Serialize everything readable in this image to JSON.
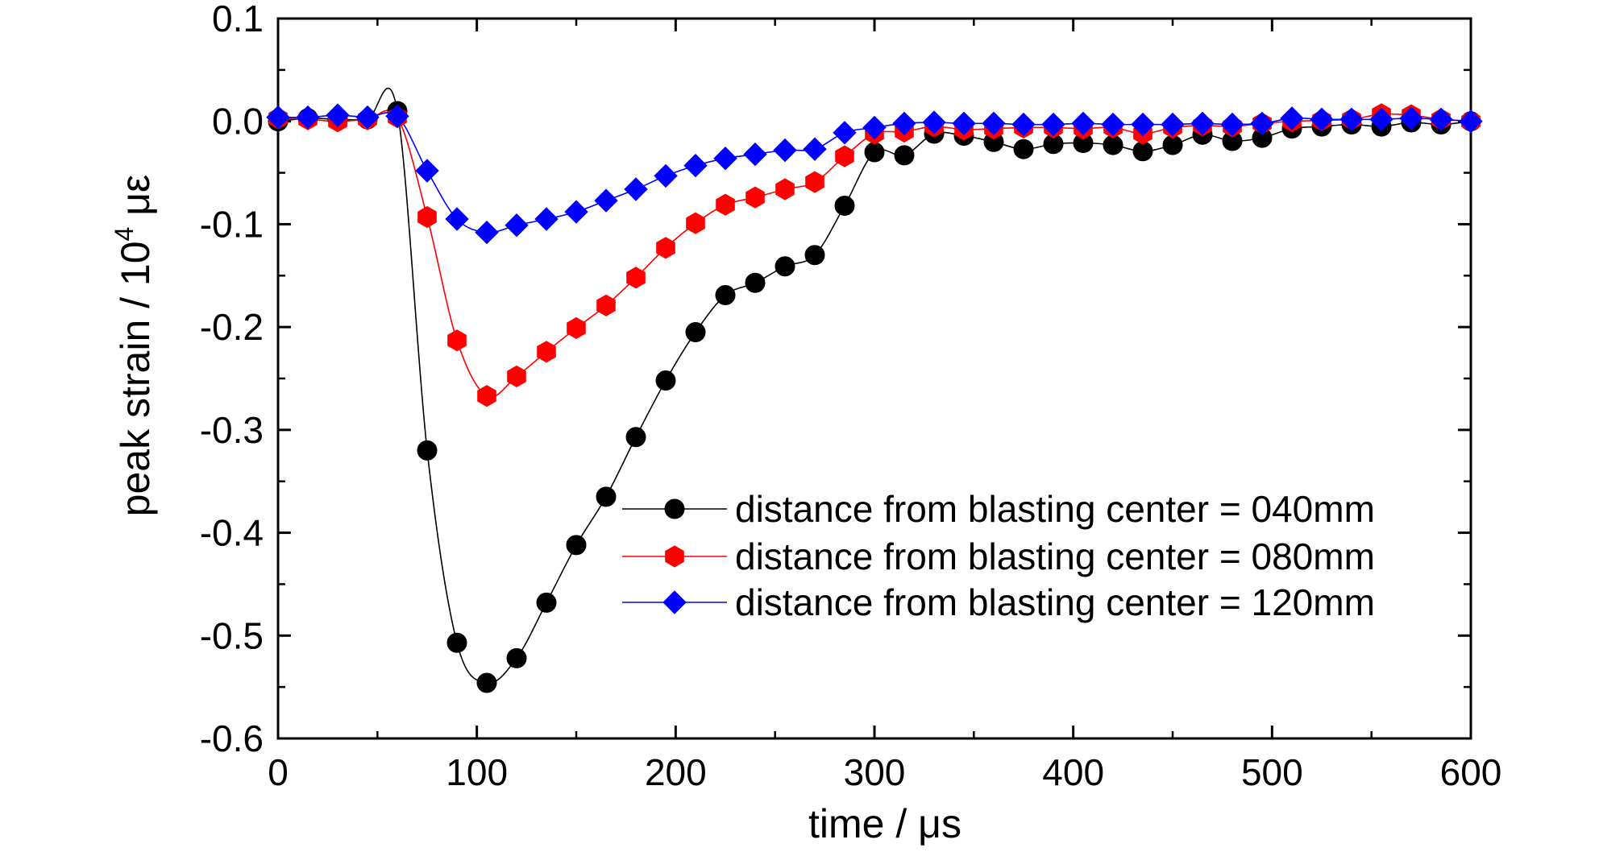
{
  "chart_data": {
    "type": "line",
    "xlabel": "time / μs",
    "ylabel_main": "peak strain / 10",
    "ylabel_sup": "4",
    "ylabel_unit": " με",
    "xlim": [
      0,
      600
    ],
    "ylim": [
      -0.6,
      0.1
    ],
    "xticks": [
      0,
      100,
      200,
      300,
      400,
      500,
      600
    ],
    "xtick_labels": [
      "0",
      "100",
      "200",
      "300",
      "400",
      "500",
      "600"
    ],
    "yticks": [
      0.1,
      0.0,
      -0.1,
      -0.2,
      -0.3,
      -0.4,
      -0.5,
      -0.6
    ],
    "ytick_labels": [
      "0.1",
      "0.0",
      "-0.1",
      "-0.2",
      "-0.3",
      "-0.4",
      "-0.5",
      "-0.6"
    ],
    "grid": false,
    "legend_position": "lower-right",
    "x": [
      0,
      15,
      30,
      45,
      60,
      75,
      90,
      105,
      120,
      135,
      150,
      165,
      180,
      195,
      210,
      225,
      240,
      255,
      270,
      285,
      300,
      315,
      330,
      345,
      360,
      375,
      390,
      405,
      420,
      435,
      450,
      465,
      480,
      495,
      510,
      525,
      540,
      555,
      570,
      585,
      600
    ],
    "series": [
      {
        "name": "distance from blasting center = 040mm",
        "color": "#000000",
        "marker": "circle",
        "values": [
          0.0,
          0.003,
          0.002,
          0.002,
          0.01,
          -0.32,
          -0.507,
          -0.546,
          -0.522,
          -0.468,
          -0.412,
          -0.365,
          -0.307,
          -0.252,
          -0.205,
          -0.169,
          -0.157,
          -0.141,
          -0.13,
          -0.082,
          -0.03,
          -0.033,
          -0.012,
          -0.014,
          -0.02,
          -0.027,
          -0.022,
          -0.021,
          -0.023,
          -0.029,
          -0.023,
          -0.013,
          -0.019,
          -0.016,
          -0.007,
          -0.005,
          -0.003,
          -0.005,
          -0.001,
          -0.003,
          0.0
        ]
      },
      {
        "name": "distance from blasting center = 080mm",
        "color": "#ff0000",
        "marker": "hexagon",
        "values": [
          0.003,
          0.002,
          0.0,
          0.002,
          0.004,
          -0.093,
          -0.213,
          -0.267,
          -0.248,
          -0.224,
          -0.201,
          -0.179,
          -0.152,
          -0.123,
          -0.099,
          -0.081,
          -0.074,
          -0.066,
          -0.059,
          -0.034,
          -0.012,
          -0.01,
          -0.005,
          -0.008,
          -0.007,
          -0.006,
          -0.006,
          -0.007,
          -0.006,
          -0.012,
          -0.006,
          -0.004,
          -0.005,
          -0.002,
          0.0,
          0.001,
          0.002,
          0.007,
          0.006,
          0.002,
          0.0
        ]
      },
      {
        "name": "distance from blasting center = 120mm",
        "color": "#0000ff",
        "marker": "diamond",
        "values": [
          0.004,
          0.004,
          0.006,
          0.004,
          0.005,
          -0.048,
          -0.095,
          -0.108,
          -0.101,
          -0.095,
          -0.088,
          -0.077,
          -0.066,
          -0.053,
          -0.043,
          -0.036,
          -0.032,
          -0.028,
          -0.027,
          -0.011,
          -0.006,
          -0.002,
          -0.001,
          -0.002,
          -0.002,
          -0.003,
          -0.003,
          -0.002,
          -0.003,
          -0.003,
          -0.003,
          -0.002,
          -0.003,
          -0.002,
          0.003,
          0.002,
          0.002,
          0.002,
          0.003,
          0.002,
          0.0
        ]
      }
    ]
  }
}
